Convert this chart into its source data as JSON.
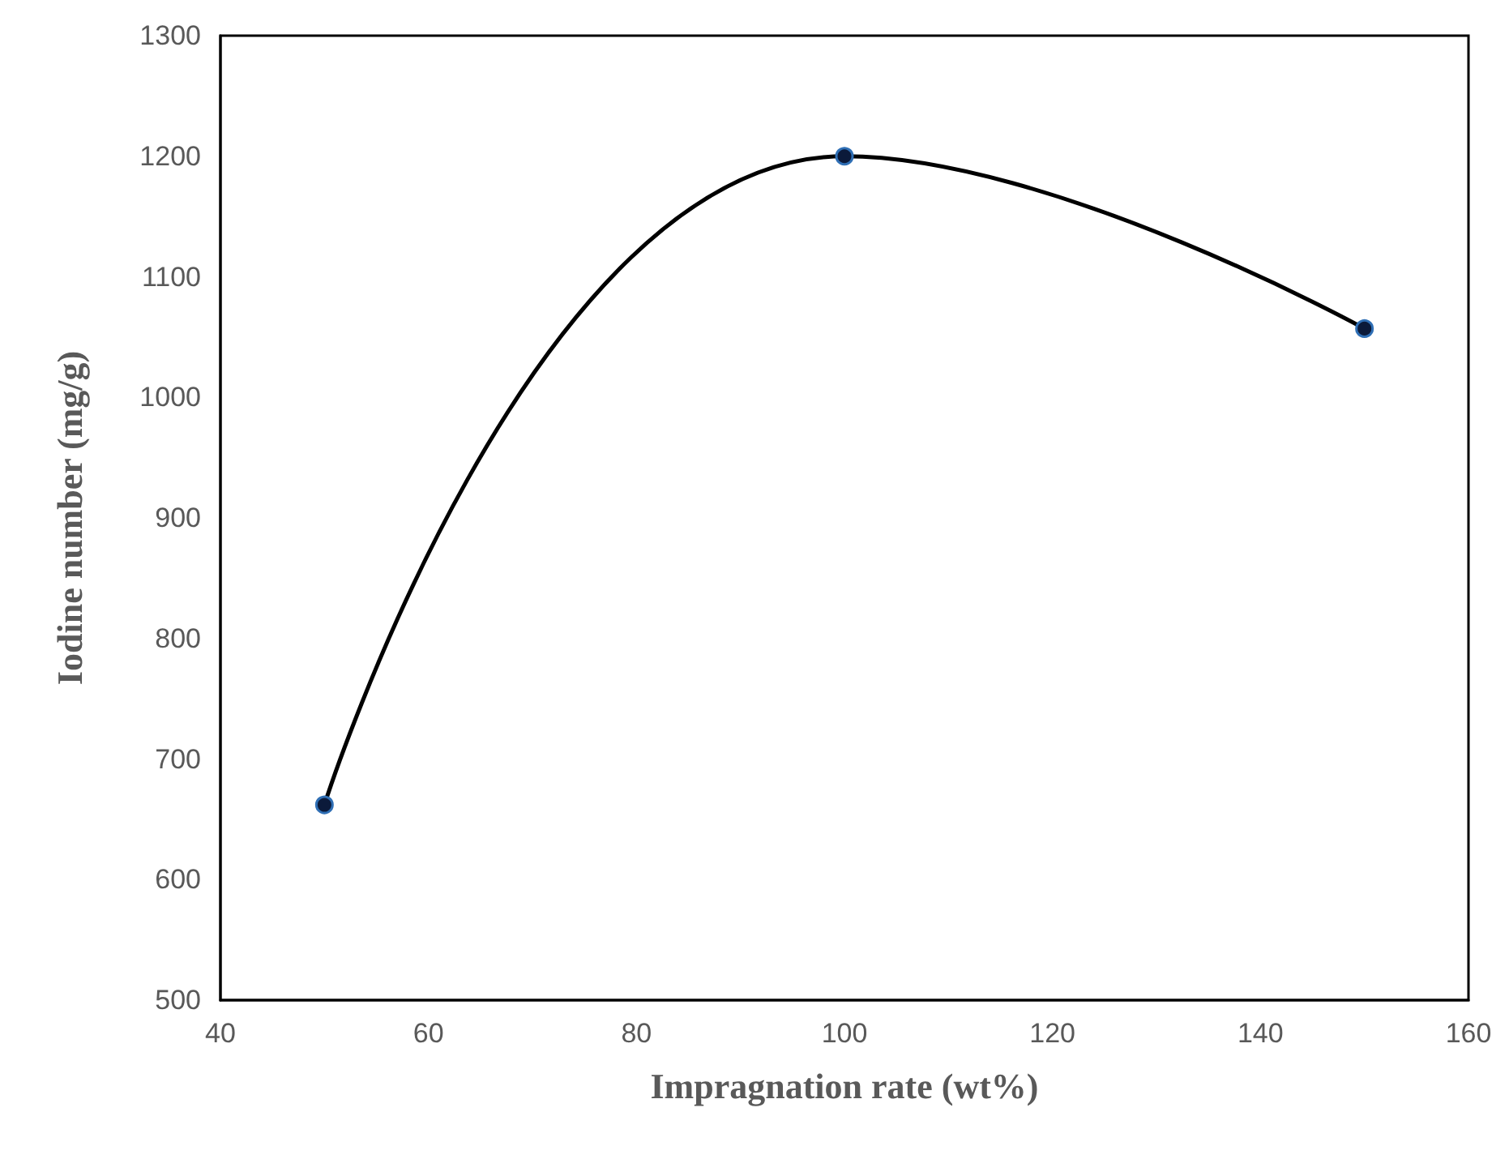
{
  "chart_data": {
    "type": "line",
    "xlabel": "Impragnation rate (wt%)",
    "ylabel": "Iodine number (mg/g)",
    "x": [
      50,
      100,
      150
    ],
    "series": [
      {
        "color": "#000000",
        "values": [
          662,
          1200,
          1057
        ]
      }
    ],
    "xlim": [
      40,
      160
    ],
    "xticks": [
      40,
      60,
      80,
      100,
      120,
      140,
      160
    ],
    "ylim": [
      500,
      1300
    ],
    "yticks": [
      500,
      600,
      700,
      800,
      900,
      1000,
      1100,
      1200,
      1300
    ],
    "marker": "circle",
    "line_style": "solid"
  }
}
